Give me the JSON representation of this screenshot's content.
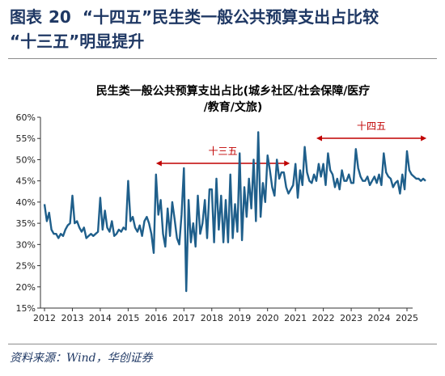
{
  "header": {
    "fig_label": "图表",
    "fig_number": "20",
    "title_line1": "“十四五”民生类一般公共预算支出占比较",
    "title_line2": "“十三五”明显提升"
  },
  "source": "资料来源：Wind，华创证券",
  "colors": {
    "line": "#1f5f8b",
    "annotation": "#c00000",
    "header": "#1f3864"
  },
  "chart_data": {
    "type": "line",
    "title_line1": "民生类一般公共预算支出占比(城乡社区/社会保障/医疗",
    "title_line2": "/教育/文旅)",
    "ylim": [
      15,
      60
    ],
    "y_ticks": [
      "15%",
      "20%",
      "25%",
      "30%",
      "35%",
      "40%",
      "45%",
      "50%",
      "55%",
      "60%"
    ],
    "x_ticks": [
      "2012",
      "2013",
      "2014",
      "2015",
      "2016",
      "2017",
      "2018",
      "2019",
      "2020",
      "2021",
      "2022",
      "2023",
      "2024",
      "2025"
    ],
    "grid": false,
    "annotations": [
      {
        "label": "十三五",
        "from": "2016",
        "to": "2020"
      },
      {
        "label": "十四五",
        "from": "2021",
        "to": "2025"
      }
    ],
    "series": [
      {
        "unit": "%",
        "x": [
          "2012-01",
          "2012-02",
          "2012-03",
          "2012-04",
          "2012-05",
          "2012-06",
          "2012-07",
          "2012-08",
          "2012-09",
          "2012-10",
          "2012-11",
          "2012-12",
          "2013-01",
          "2013-02",
          "2013-03",
          "2013-04",
          "2013-05",
          "2013-06",
          "2013-07",
          "2013-08",
          "2013-09",
          "2013-10",
          "2013-11",
          "2013-12",
          "2014-01",
          "2014-02",
          "2014-03",
          "2014-04",
          "2014-05",
          "2014-06",
          "2014-07",
          "2014-08",
          "2014-09",
          "2014-10",
          "2014-11",
          "2014-12",
          "2015-01",
          "2015-02",
          "2015-03",
          "2015-04",
          "2015-05",
          "2015-06",
          "2015-07",
          "2015-08",
          "2015-09",
          "2015-10",
          "2015-11",
          "2015-12",
          "2016-01",
          "2016-02",
          "2016-03",
          "2016-04",
          "2016-05",
          "2016-06",
          "2016-07",
          "2016-08",
          "2016-09",
          "2016-10",
          "2016-11",
          "2016-12",
          "2017-01",
          "2017-02",
          "2017-03",
          "2017-04",
          "2017-05",
          "2017-06",
          "2017-07",
          "2017-08",
          "2017-09",
          "2017-10",
          "2017-11",
          "2017-12",
          "2018-01",
          "2018-02",
          "2018-03",
          "2018-04",
          "2018-05",
          "2018-06",
          "2018-07",
          "2018-08",
          "2018-09",
          "2018-10",
          "2018-11",
          "2018-12",
          "2019-01",
          "2019-02",
          "2019-03",
          "2019-04",
          "2019-05",
          "2019-06",
          "2019-07",
          "2019-08",
          "2019-09",
          "2019-10",
          "2019-11",
          "2019-12",
          "2020-01",
          "2020-02",
          "2020-03",
          "2020-04",
          "2020-05",
          "2020-06",
          "2020-07",
          "2020-08",
          "2020-09",
          "2020-10",
          "2020-11",
          "2020-12",
          "2021-01",
          "2021-02",
          "2021-03",
          "2021-04",
          "2021-05",
          "2021-06",
          "2021-07",
          "2021-08",
          "2021-09",
          "2021-10",
          "2021-11",
          "2021-12",
          "2022-01",
          "2022-02",
          "2022-03",
          "2022-04",
          "2022-05",
          "2022-06",
          "2022-07",
          "2022-08",
          "2022-09",
          "2022-10",
          "2022-11",
          "2022-12",
          "2023-01",
          "2023-02",
          "2023-03",
          "2023-04",
          "2023-05",
          "2023-06",
          "2023-07",
          "2023-08",
          "2023-09",
          "2023-10",
          "2023-11",
          "2023-12",
          "2024-01",
          "2024-02",
          "2024-03",
          "2024-04",
          "2024-05",
          "2024-06",
          "2024-07",
          "2024-08",
          "2024-09",
          "2024-10",
          "2024-11",
          "2024-12",
          "2025-01",
          "2025-02",
          "2025-03",
          "2025-04",
          "2025-05",
          "2025-06",
          "2025-07",
          "2025-08",
          "2025-09"
        ],
        "values": [
          39.5,
          35.5,
          37.5,
          33.5,
          32.5,
          32.5,
          31.5,
          32.5,
          32.0,
          33.5,
          34.5,
          35.0,
          41.5,
          35.0,
          35.5,
          34.0,
          33.0,
          34.0,
          31.5,
          32.0,
          32.5,
          32.0,
          32.5,
          33.0,
          41.0,
          33.5,
          38.0,
          34.0,
          33.0,
          35.5,
          32.0,
          32.5,
          33.5,
          33.0,
          34.0,
          33.5,
          45.0,
          35.5,
          36.5,
          34.0,
          33.0,
          34.5,
          32.0,
          35.5,
          36.5,
          35.0,
          32.5,
          28.0,
          46.5,
          37.0,
          40.5,
          32.5,
          29.5,
          38.5,
          32.0,
          40.0,
          36.0,
          31.5,
          30.0,
          37.0,
          48.0,
          19.0,
          40.5,
          30.5,
          35.0,
          29.5,
          41.5,
          32.5,
          35.0,
          40.5,
          31.5,
          43.0,
          43.0,
          30.5,
          45.5,
          33.5,
          41.5,
          30.5,
          40.5,
          30.5,
          46.5,
          31.5,
          39.5,
          33.0,
          51.5,
          31.0,
          43.5,
          36.5,
          45.5,
          38.5,
          50.0,
          35.5,
          56.5,
          36.5,
          44.5,
          40.0,
          51.0,
          47.5,
          43.5,
          41.5,
          50.0,
          45.5,
          47.0,
          47.0,
          43.5,
          42.0,
          43.0,
          44.0,
          49.0,
          41.0,
          47.5,
          44.0,
          53.0,
          47.0,
          45.0,
          44.5,
          46.5,
          45.0,
          49.0,
          46.0,
          49.0,
          44.0,
          51.5,
          47.5,
          46.5,
          43.5,
          45.5,
          43.0,
          47.5,
          45.0,
          45.0,
          46.5,
          44.5,
          44.5,
          52.5,
          48.0,
          46.0,
          45.0,
          45.0,
          46.0,
          44.0,
          45.0,
          46.0,
          44.5,
          46.5,
          44.0,
          51.5,
          47.0,
          46.0,
          45.5,
          43.5,
          44.5,
          45.0,
          42.0,
          46.5,
          43.0,
          52.0,
          47.5,
          46.5,
          46.0,
          45.5,
          45.5,
          45.0,
          45.5,
          45.0
        ]
      }
    ]
  }
}
